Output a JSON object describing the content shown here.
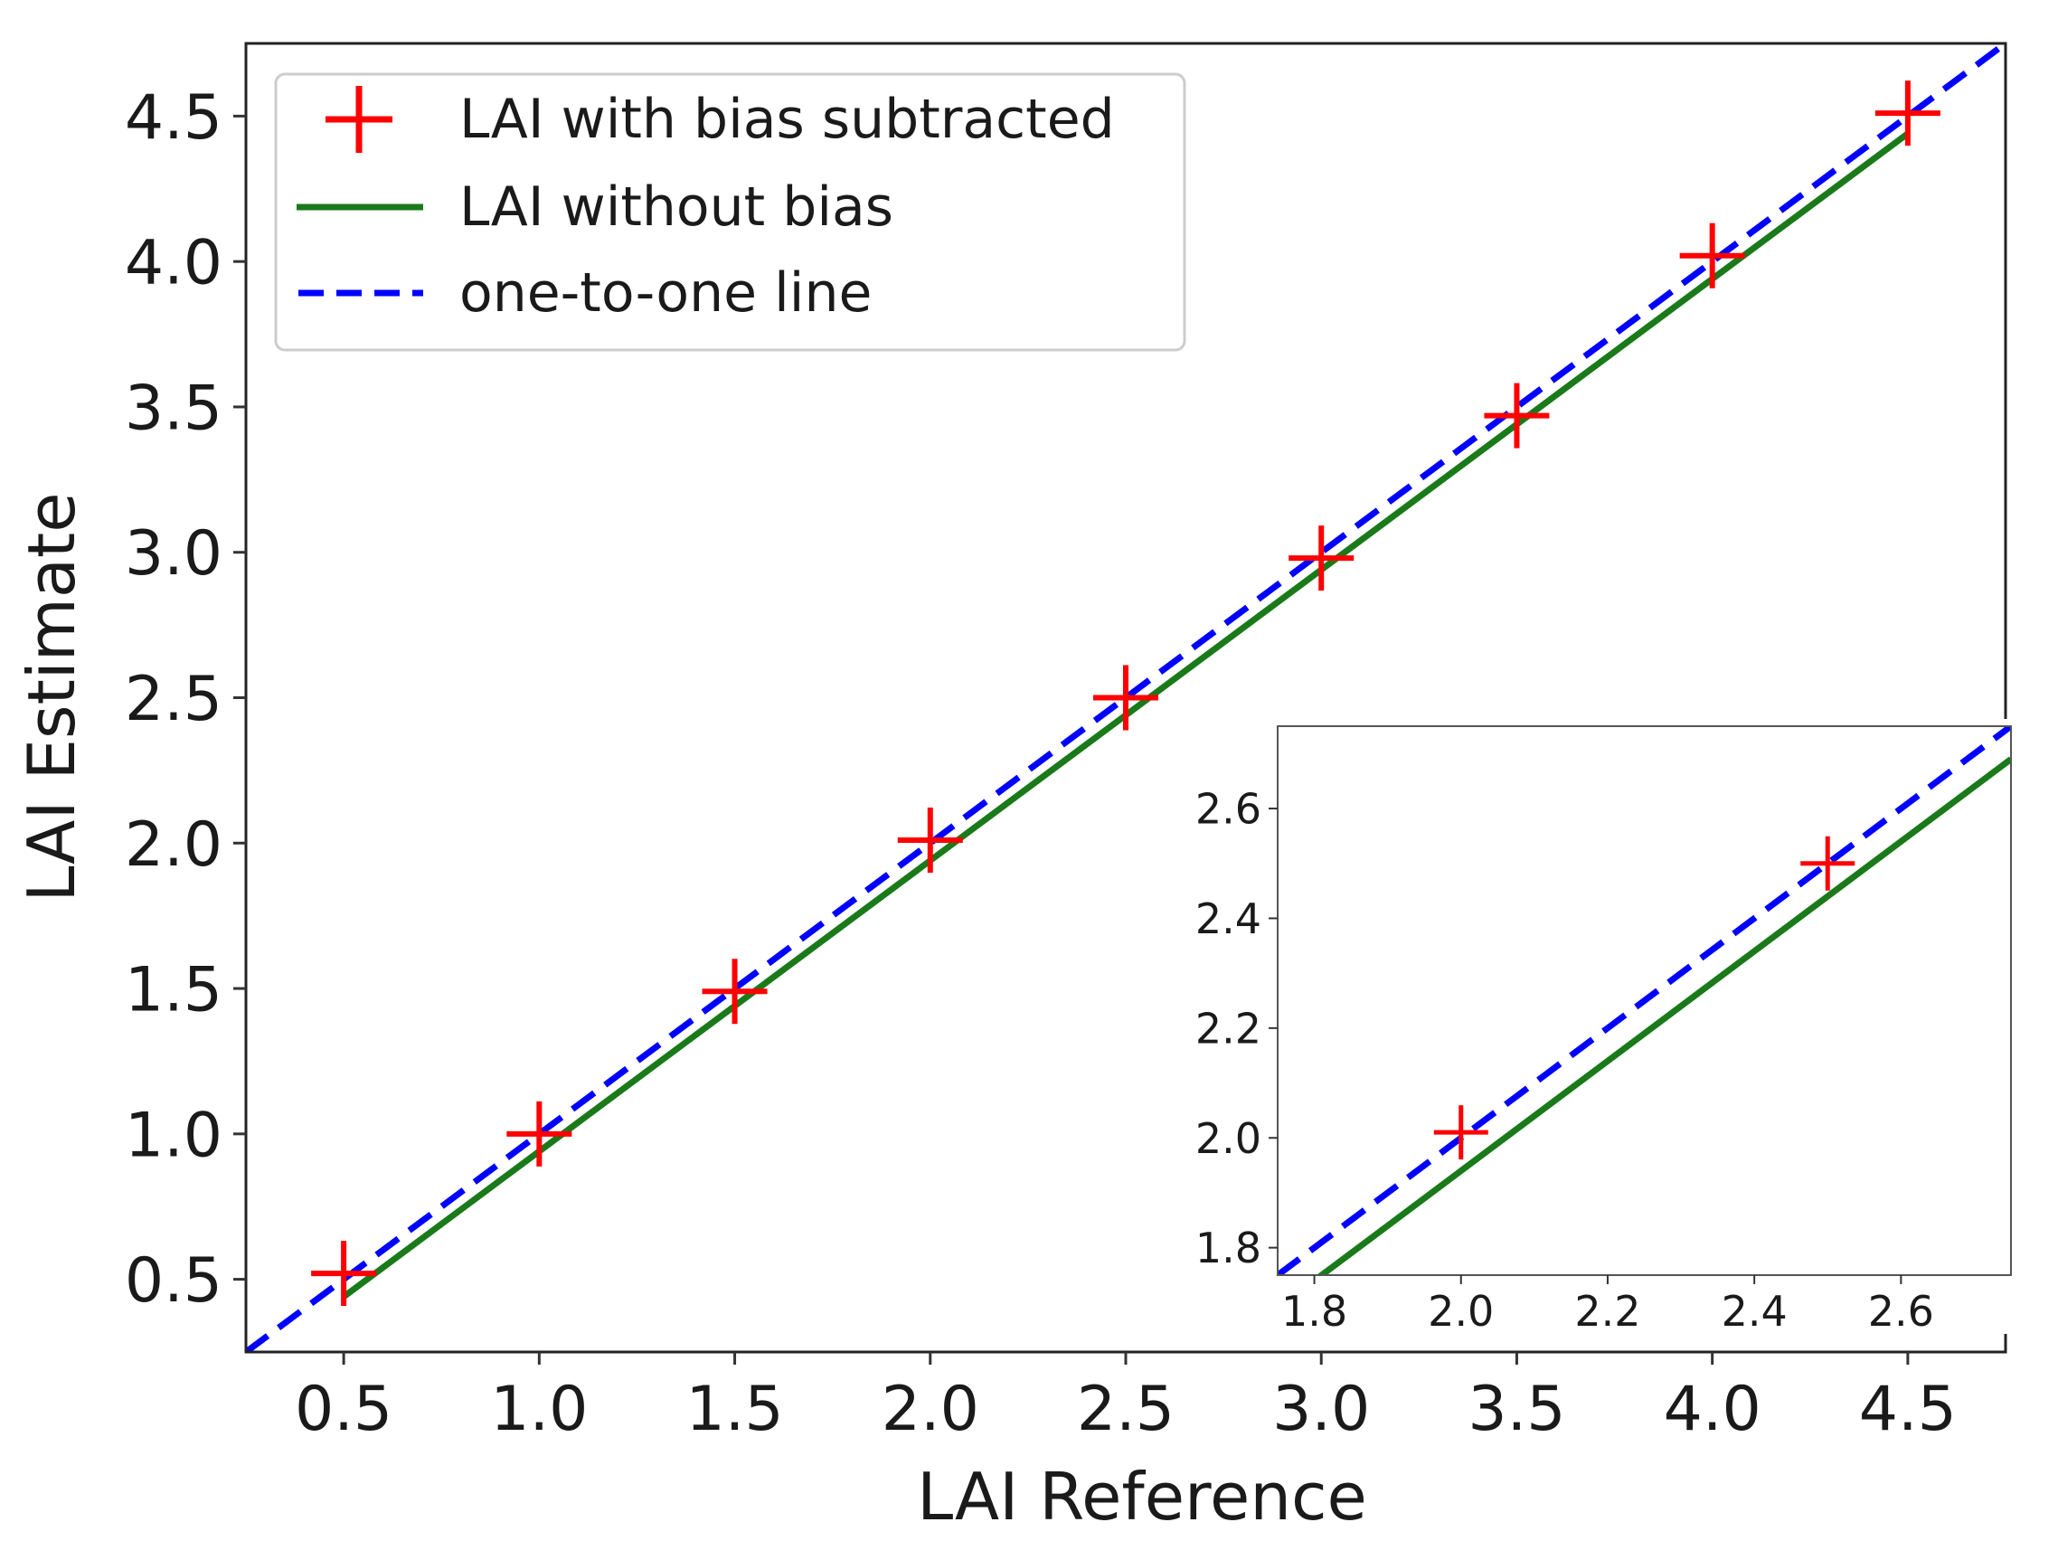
{
  "chart_data": [
    {
      "type": "scatter",
      "role": "main",
      "title": "",
      "xlabel": "LAI Reference",
      "ylabel": "LAI Estimate",
      "xlim": [
        0.25,
        4.75
      ],
      "ylim": [
        0.25,
        4.75
      ],
      "xticks": [
        0.5,
        1.0,
        1.5,
        2.0,
        2.5,
        3.0,
        3.5,
        4.0,
        4.5
      ],
      "yticks": [
        0.5,
        1.0,
        1.5,
        2.0,
        2.5,
        3.0,
        3.5,
        4.0,
        4.5
      ],
      "xtick_labels": [
        "0.5",
        "1.0",
        "1.5",
        "2.0",
        "2.5",
        "3.0",
        "3.5",
        "4.0",
        "4.5"
      ],
      "ytick_labels": [
        "0.5",
        "1.0",
        "1.5",
        "2.0",
        "2.5",
        "3.0",
        "3.5",
        "4.0",
        "4.5"
      ],
      "legend_position": "top-left",
      "series": [
        {
          "name": "LAI with bias subtracted",
          "kind": "markers",
          "marker": "plus",
          "color": "#ff0000",
          "x": [
            0.5,
            1.0,
            1.5,
            2.0,
            2.5,
            3.0,
            3.5,
            4.0,
            4.5
          ],
          "y": [
            0.52,
            1.0,
            1.49,
            2.01,
            2.5,
            2.98,
            3.47,
            4.02,
            4.51
          ]
        },
        {
          "name": "LAI without bias",
          "kind": "line",
          "style": "solid",
          "color": "#1a7a1a",
          "x": [
            0.5,
            4.5
          ],
          "y": [
            0.44,
            4.44
          ]
        },
        {
          "name": "one-to-one line",
          "kind": "line",
          "style": "dashed",
          "color": "#0000ff",
          "x": [
            0.25,
            4.75
          ],
          "y": [
            0.25,
            4.75
          ]
        }
      ]
    },
    {
      "type": "scatter",
      "role": "inset",
      "title": "",
      "xlabel": "",
      "ylabel": "",
      "xlim": [
        1.75,
        2.75
      ],
      "ylim": [
        1.75,
        2.75
      ],
      "xticks": [
        1.8,
        2.0,
        2.2,
        2.4,
        2.6
      ],
      "yticks": [
        1.8,
        2.0,
        2.2,
        2.4,
        2.6
      ],
      "xtick_labels": [
        "1.8",
        "2.0",
        "2.2",
        "2.4",
        "2.6"
      ],
      "ytick_labels": [
        "1.8",
        "2.0",
        "2.2",
        "2.4",
        "2.6"
      ],
      "series": [
        {
          "name": "LAI with bias subtracted",
          "kind": "markers",
          "marker": "plus",
          "color": "#ff0000",
          "x": [
            2.0,
            2.5
          ],
          "y": [
            2.01,
            2.5
          ]
        },
        {
          "name": "LAI without bias",
          "kind": "line",
          "style": "solid",
          "color": "#1a7a1a",
          "x": [
            1.75,
            2.75
          ],
          "y": [
            1.69,
            2.69
          ]
        },
        {
          "name": "one-to-one line",
          "kind": "line",
          "style": "dashed",
          "color": "#0000ff",
          "x": [
            1.75,
            2.75
          ],
          "y": [
            1.75,
            2.75
          ]
        }
      ]
    }
  ]
}
